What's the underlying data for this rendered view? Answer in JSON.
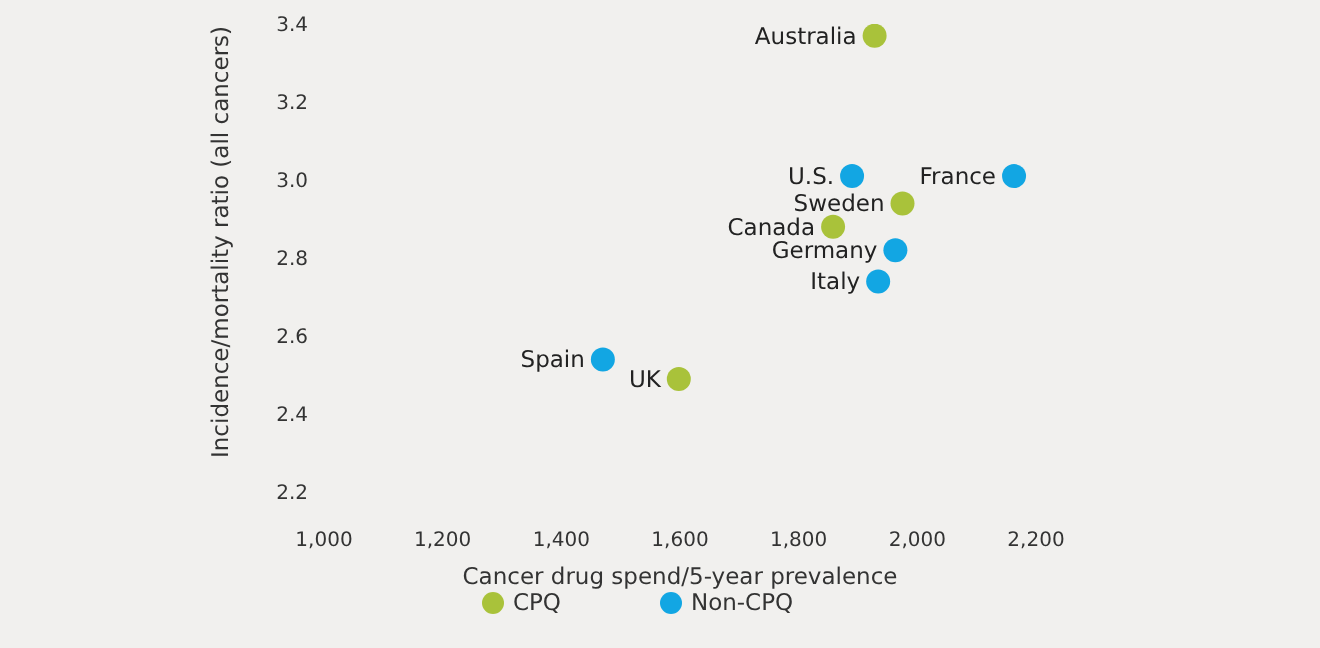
{
  "chart_data": {
    "type": "scatter",
    "xlabel": "Cancer drug spend/5-year prevalence",
    "ylabel": "Incidence/mortality ratio (all cancers)",
    "series": [
      {
        "name": "CPQ",
        "color": "#a9c23a",
        "x": [
          1928,
          1975,
          1858,
          1598
        ],
        "values": [
          3.37,
          2.94,
          2.88,
          2.49
        ]
      },
      {
        "name": "Non-CPQ",
        "color": "#12a6e3",
        "x": [
          1890,
          2163,
          1963,
          1934,
          1470
        ],
        "values": [
          3.01,
          3.01,
          2.82,
          2.74,
          2.54
        ]
      }
    ],
    "annotations": [
      {
        "text": "Australia",
        "x": 1928,
        "y": 3.37
      },
      {
        "text": "U.S.",
        "x": 1890,
        "y": 3.01
      },
      {
        "text": "France",
        "x": 2163,
        "y": 3.01
      },
      {
        "text": "Sweden",
        "x": 1975,
        "y": 2.94
      },
      {
        "text": "Canada",
        "x": 1858,
        "y": 2.88
      },
      {
        "text": "Germany",
        "x": 1963,
        "y": 2.82
      },
      {
        "text": "Italy",
        "x": 1934,
        "y": 2.74
      },
      {
        "text": "Spain",
        "x": 1470,
        "y": 2.54
      },
      {
        "text": "UK",
        "x": 1598,
        "y": 2.49
      }
    ],
    "xlim": [
      1000,
      2200
    ],
    "xticks": [
      {
        "value": 1000,
        "label": "1,000"
      },
      {
        "value": 1200,
        "label": "1,200"
      },
      {
        "value": 1400,
        "label": "1,400"
      },
      {
        "value": 1600,
        "label": "1,600"
      },
      {
        "value": 1800,
        "label": "1,800"
      },
      {
        "value": 2000,
        "label": "2,000"
      },
      {
        "value": 2200,
        "label": "2,200"
      }
    ],
    "ylim": [
      2.2,
      3.4
    ],
    "yticks": [
      {
        "value": 2.2,
        "label": "2.2"
      },
      {
        "value": 2.4,
        "label": "2.4"
      },
      {
        "value": 2.6,
        "label": "2.6"
      },
      {
        "value": 2.8,
        "label": "2.8"
      },
      {
        "value": 3.0,
        "label": "3.0"
      },
      {
        "value": 3.2,
        "label": "3.2"
      },
      {
        "value": 3.4,
        "label": "3.4"
      }
    ],
    "grid": false,
    "legend": "bottom",
    "marker": "circle"
  }
}
